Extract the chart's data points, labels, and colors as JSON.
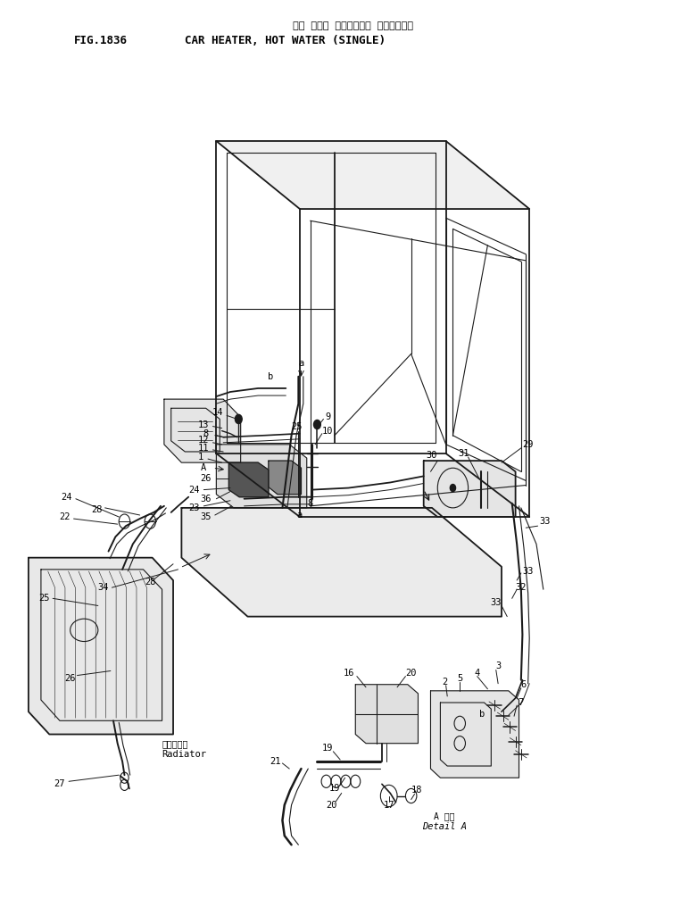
{
  "title_japanese": "カー ヒータ （オンスイ） （シングル）",
  "title_english": "CAR HEATER, HOT WATER (SINGLE)",
  "fig_label": "FIG.1836",
  "background_color": "#ffffff",
  "line_color": "#1a1a1a",
  "text_color": "#000000",
  "fig_width": 7.81,
  "fig_height": 10.16,
  "dpi": 100
}
